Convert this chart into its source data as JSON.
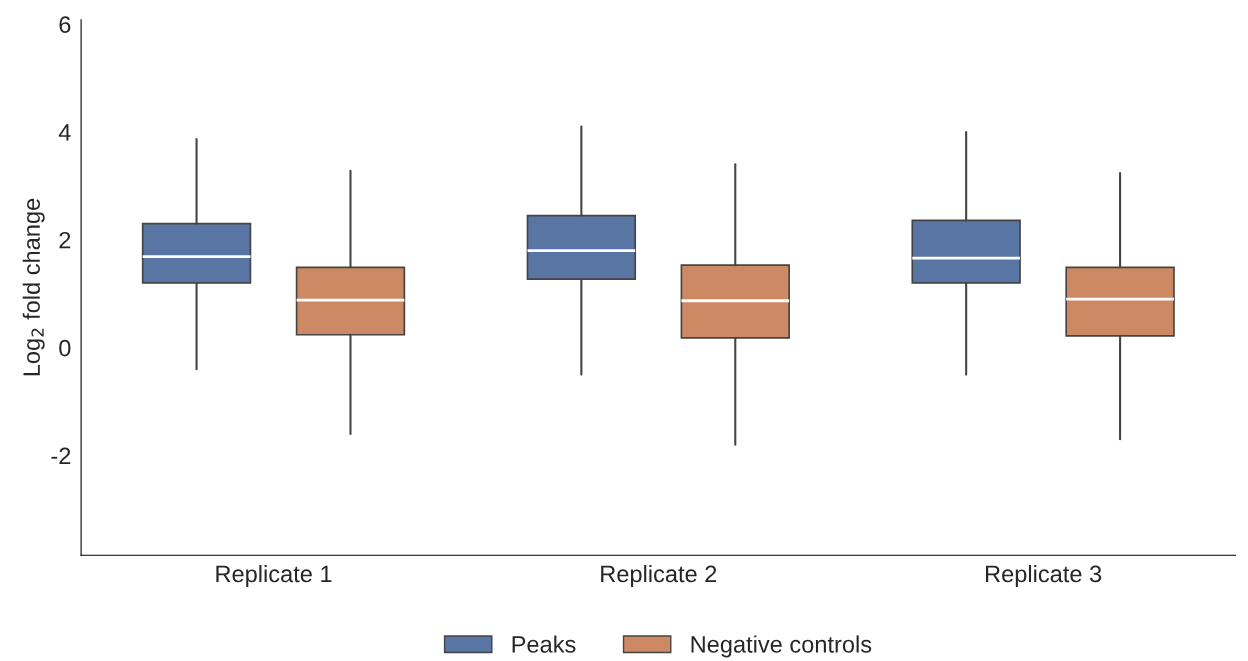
{
  "chart_data": {
    "type": "box",
    "ylabel": "Log$_{2}$ fold change",
    "categories": [
      "Replicate 1",
      "Replicate 2",
      "Replicate 3"
    ],
    "series": [
      {
        "name": "Peaks",
        "color": "#5875a4",
        "boxes": [
          {
            "low": -0.4,
            "q1": 1.2,
            "median": 1.69,
            "q3": 2.3,
            "high": 3.87
          },
          {
            "low": -0.5,
            "q1": 1.27,
            "median": 1.8,
            "q3": 2.45,
            "high": 4.1
          },
          {
            "low": -0.5,
            "q1": 1.2,
            "median": 1.66,
            "q3": 2.36,
            "high": 4.0
          }
        ]
      },
      {
        "name": "Negative controls",
        "color": "#cc8963",
        "boxes": [
          {
            "low": -1.6,
            "q1": 0.24,
            "median": 0.88,
            "q3": 1.49,
            "high": 3.28
          },
          {
            "low": -1.8,
            "q1": 0.18,
            "median": 0.87,
            "q3": 1.53,
            "high": 3.4
          },
          {
            "low": -1.7,
            "q1": 0.22,
            "median": 0.9,
            "q3": 1.49,
            "high": 3.24
          }
        ]
      }
    ],
    "ylim": [
      -3.85,
      6.08
    ],
    "yticks": [
      -2,
      0,
      2,
      4,
      6
    ],
    "grid": false,
    "legend": "bottom"
  }
}
